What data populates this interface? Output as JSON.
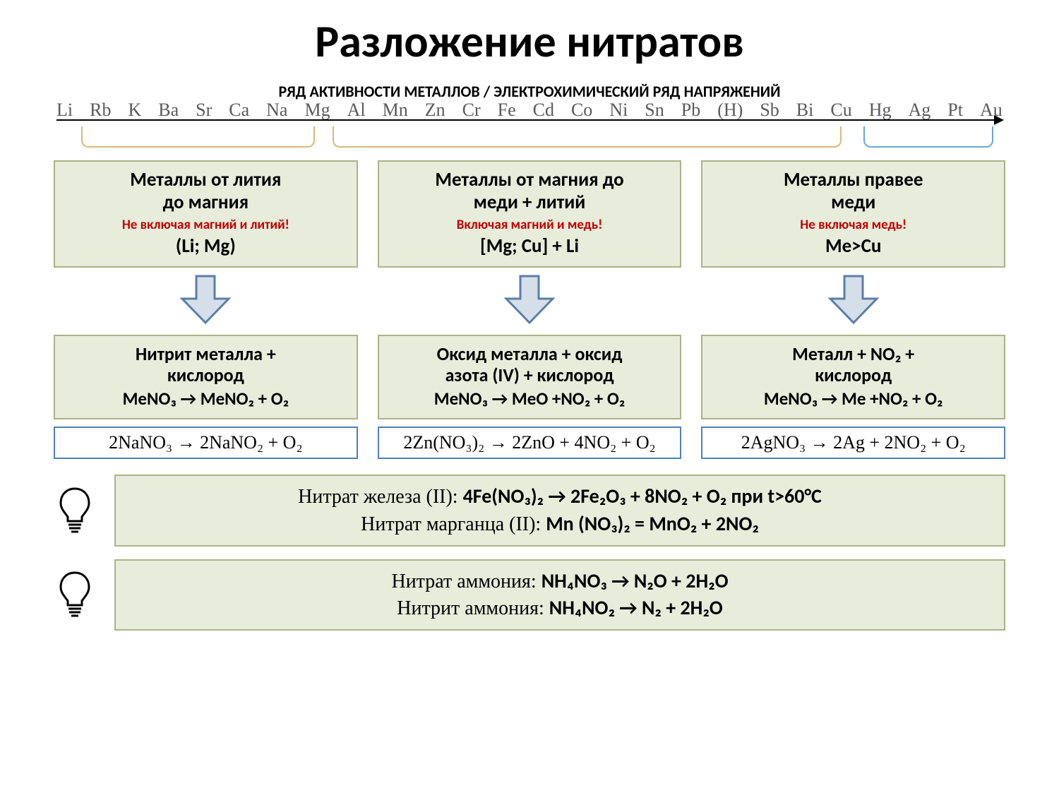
{
  "title": "Разложение нитратов",
  "series": {
    "heading": "РЯД АКТИВНОСТИ МЕТАЛЛОВ / ЭЛЕКТРОХИМИЧЕСКИЙ РЯД НАПРЯЖЕНИЙ",
    "elements": [
      "Li",
      "Rb",
      "K",
      "Ba",
      "Sr",
      "Ca",
      "Na",
      "Mg",
      "Al",
      "Mn",
      "Zn",
      "Cr",
      "Fe",
      "Cd",
      "Co",
      "Ni",
      "Sn",
      "Pb",
      "(H)",
      "Sb",
      "Bi",
      "Cu",
      "Hg",
      "Ag",
      "Pt",
      "Au"
    ],
    "brackets": [
      {
        "left_pct": 2.6,
        "right_pct": 27.3,
        "color": "#d7b97a"
      },
      {
        "left_pct": 29.2,
        "right_pct": 83.0,
        "color": "#d7b97a"
      },
      {
        "left_pct": 85.3,
        "right_pct": 99.0,
        "color": "#6aa7d6"
      }
    ]
  },
  "columns": [
    {
      "head_line1": "Металлы от лития",
      "head_line2": "до магния",
      "note": "Не включая магний и литий!",
      "range": "(Li; Mg)",
      "result_line1": "Нитрит металла +",
      "result_line2": "кислород",
      "eq": "MeNO₃ → MeNO₂ + O₂",
      "example": "2NaNO₃ → 2NaNO₂ + O₂"
    },
    {
      "head_line1": "Металлы от магния до",
      "head_line2": "меди + литий",
      "note": "Включая магний и медь!",
      "range": "[Mg; Cu] + Li",
      "result_line1": "Оксид металла + оксид",
      "result_line2": "азота (IV) + кислород",
      "eq": "MeNO₃ → MeO +NO₂ + O₂",
      "example": "2Zn(NO₃)₂ → 2ZnO + 4NO₂ + O₂"
    },
    {
      "head_line1": "Металлы правее",
      "head_line2": "меди",
      "note": "Не включая медь!",
      "range": "Me>Cu",
      "result_line1": "Металл + NO₂ +",
      "result_line2": "кислород",
      "eq": "MeNO₃ → Me +NO₂ + O₂",
      "example": "2AgNO₃ → 2Ag + 2NO₂ + O₂"
    }
  ],
  "specials": [
    {
      "line1_label": "Нитрат железа (II): ",
      "line1_eq": "4Fe(NO₃)₂ → 2Fe₂O₃ + 8NO₂ + O₂ при t>60°C",
      "line2_label": "Нитрат марганца (II): ",
      "line2_eq": "Mn (NO₃)₂ = MnO₂ + 2NO₂"
    },
    {
      "line1_label": "Нитрат  аммония: ",
      "line1_eq": "NH₄NO₃ → N₂O + 2H₂O",
      "line2_label": "Нитрит аммония: ",
      "line2_eq": "NH₄NO₂ → N₂ + 2H₂O"
    }
  ],
  "style": {
    "box_bg": "#e7ecdb",
    "box_border": "#a9b488",
    "example_border": "#4f81bd",
    "arrow_fill": "#d5dfe9",
    "arrow_stroke": "#5b7ea8",
    "note_color": "#c00000",
    "bulb_stroke": "#000000"
  }
}
